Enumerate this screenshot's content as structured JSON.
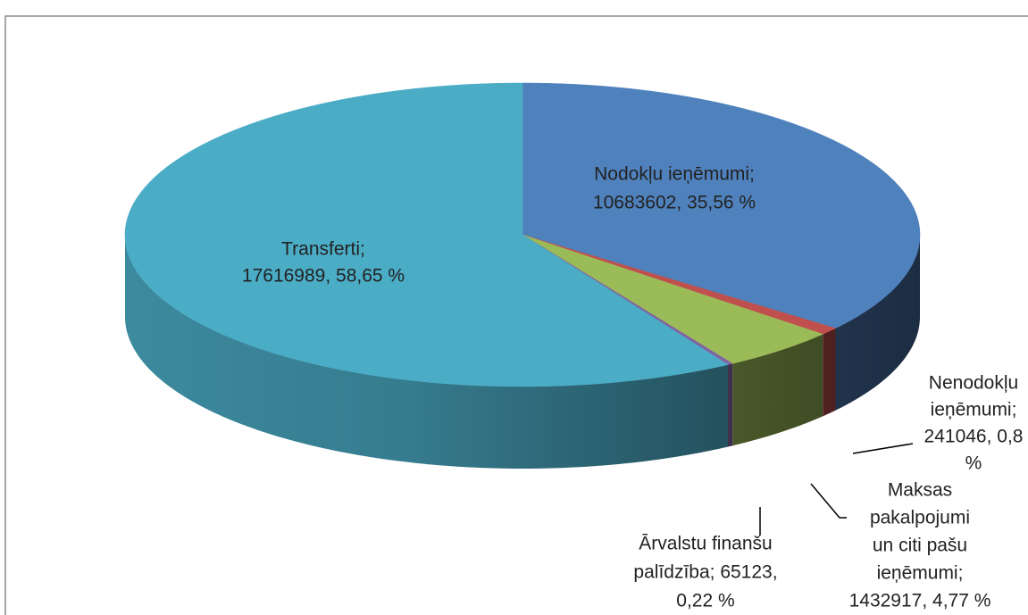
{
  "chart_data": {
    "type": "pie3d",
    "categories": [
      "Nodokļu ieņēmumi",
      "Nenodokļu ieņēmumi",
      "Maksas pakalpojumi un citi pašu ieņēmumi",
      "Ārvalstu finanšu palīdzība",
      "Transferti"
    ],
    "values": [
      10683602,
      241046,
      1432917,
      65123,
      17616989
    ],
    "percents": [
      35.56,
      0.8,
      4.77,
      0.22,
      58.65
    ],
    "value_labels": [
      [
        "Nodokļu ieņēmumi;",
        "10683602, 35,56 %"
      ],
      [
        "Nenodokļu",
        "ieņēmumi;",
        "241046, 0,8",
        "%"
      ],
      [
        "Maksas",
        "pakalpojumi",
        "un citi pašu",
        "ieņēmumi;",
        "1432917, 4,77 %"
      ],
      [
        "Ārvalstu finanšu",
        "palīdzība; 65123,",
        "0,22 %"
      ],
      [
        "Transferti;",
        "17616989, 58,65 %"
      ]
    ],
    "colors": [
      "#4f81bd",
      "#c0504d",
      "#9bbb59",
      "#8064a2",
      "#4bacc6"
    ]
  }
}
